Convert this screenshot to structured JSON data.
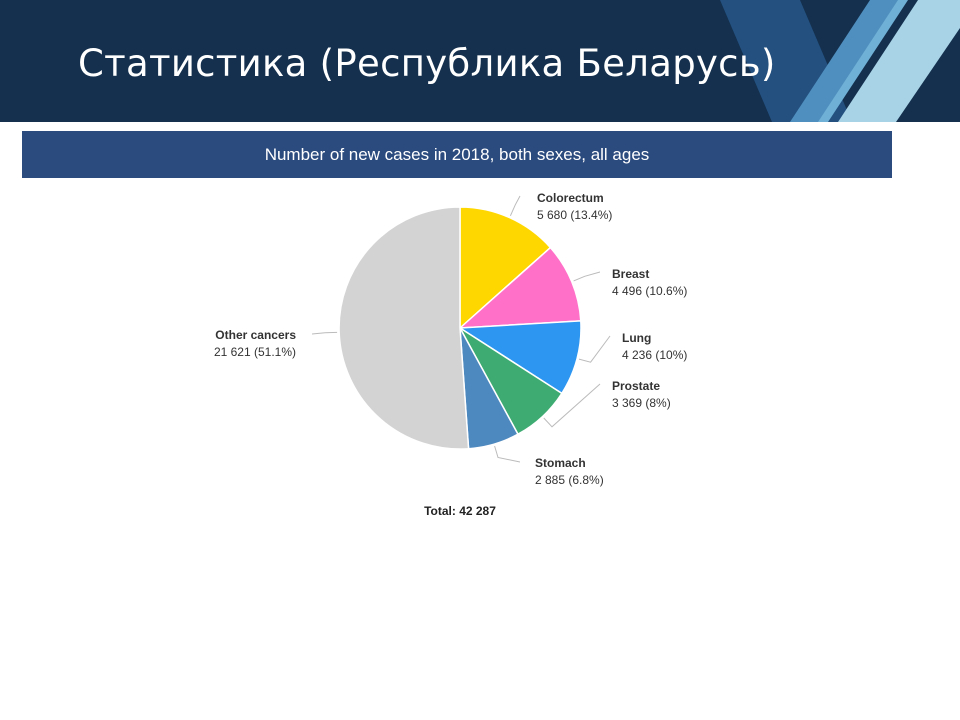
{
  "slide": {
    "title": "Статистика (Республика Беларусь)"
  },
  "colors": {
    "header_bg": "#14304e",
    "banner_bg": "#2b4a7e",
    "deco_light": "#a8d3e6",
    "deco_mid": "#4f8fbf",
    "deco_dark": "#23507f"
  },
  "chart_data": {
    "type": "pie",
    "title": "Number of new cases in 2018, both sexes, all ages",
    "total_label": "Total: 42 287",
    "total": 42287,
    "slices": [
      {
        "name": "Colorectum",
        "value": 5680,
        "value_label": "5 680 (13.4%)",
        "color": "#ffd700"
      },
      {
        "name": "Breast",
        "value": 4496,
        "value_label": "4 496 (10.6%)",
        "color": "#ff70c8"
      },
      {
        "name": "Lung",
        "value": 4236,
        "value_label": "4 236 (10%)",
        "color": "#2d96f0"
      },
      {
        "name": "Prostate",
        "value": 3369,
        "value_label": "3 369 (8%)",
        "color": "#3eac72"
      },
      {
        "name": "Stomach",
        "value": 2885,
        "value_label": "2 885 (6.8%)",
        "color": "#4d88bf"
      },
      {
        "name": "Other cancers",
        "value": 21621,
        "value_label": "21 621 (51.1%)",
        "color": "#d3d3d3"
      }
    ]
  }
}
